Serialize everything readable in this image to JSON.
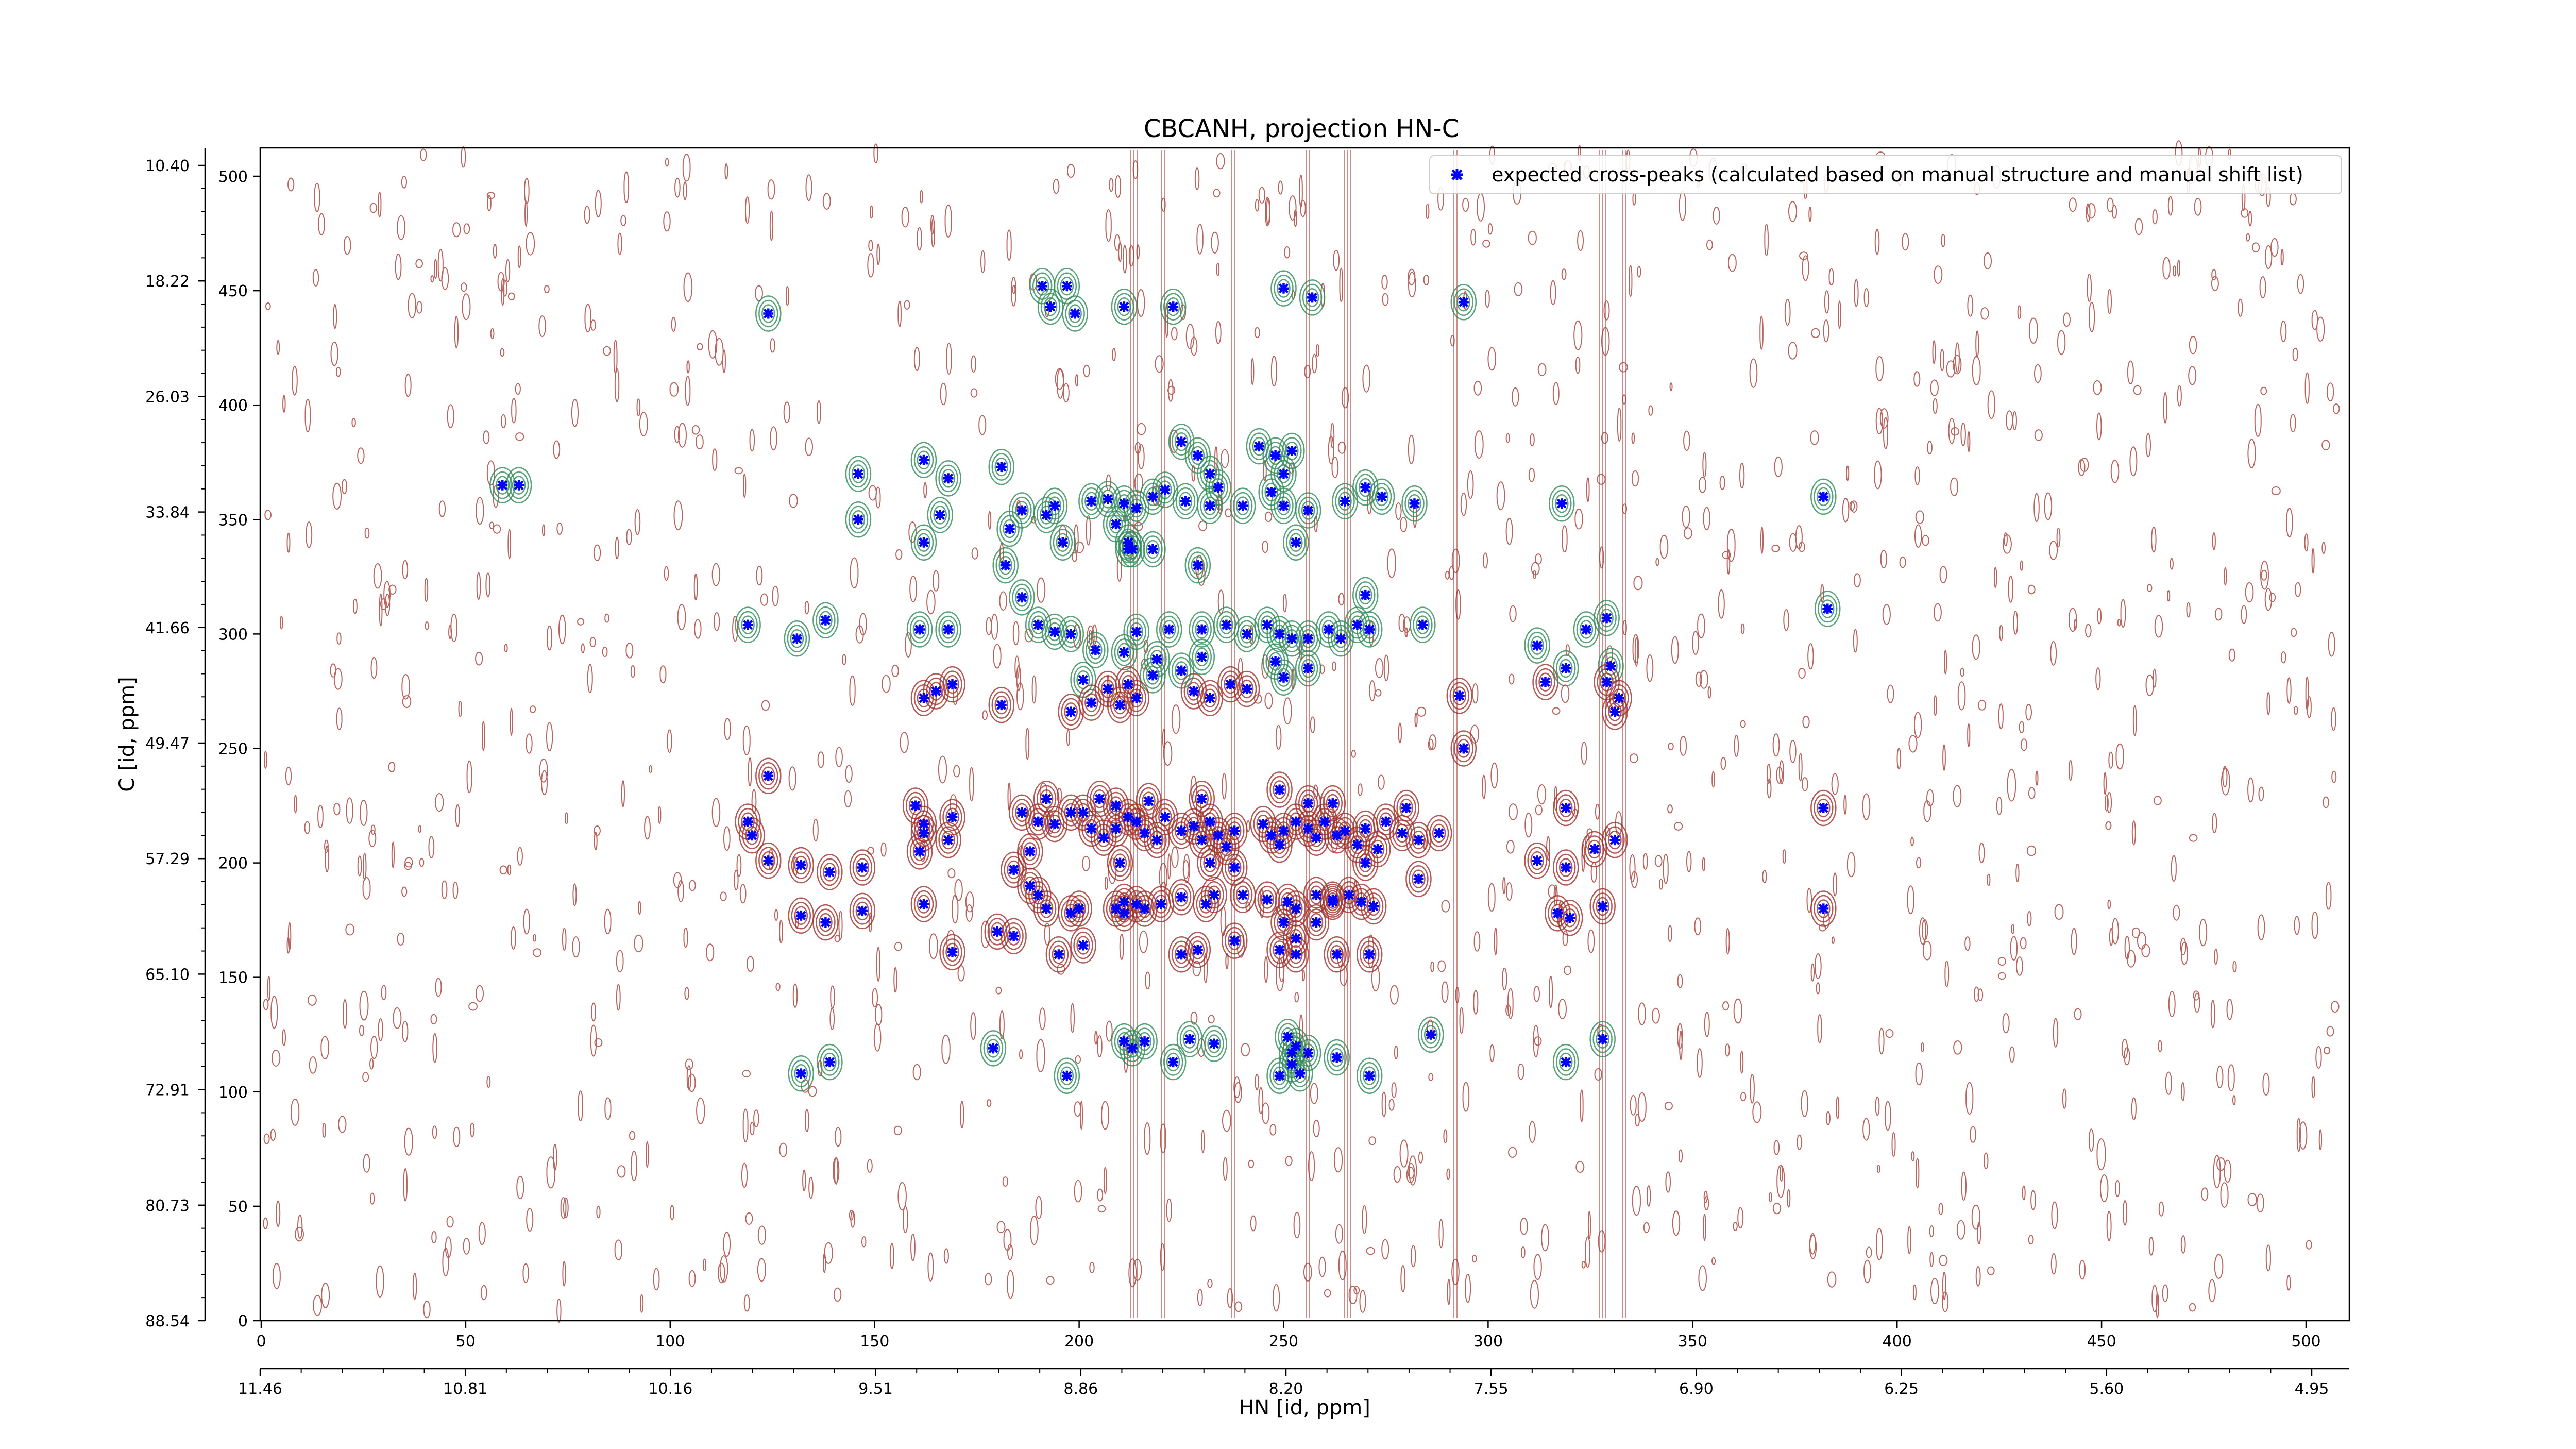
{
  "chart_data": {
    "type": "scatter",
    "title": "CBCANH, projection HN-C",
    "xlabel": "HN [id, ppm]",
    "ylabel": "C [id, ppm]",
    "xlim": [
      0,
      511
    ],
    "ylim": [
      0,
      511
    ],
    "x_ticks_index": [
      "0",
      "50",
      "100",
      "150",
      "200",
      "250",
      "300",
      "350",
      "400",
      "450",
      "500"
    ],
    "y_ticks_index": [
      "0",
      "50",
      "100",
      "150",
      "200",
      "250",
      "300",
      "350",
      "400",
      "450",
      "500"
    ],
    "x_ticks_ppm": [
      "11.46",
      "10.81",
      "10.16",
      "9.51",
      "8.86",
      "8.20",
      "7.55",
      "6.90",
      "6.25",
      "5.60",
      "4.95"
    ],
    "y_ticks_ppm": [
      "88.54",
      "80.73",
      "72.91",
      "65.10",
      "57.29",
      "49.47",
      "41.66",
      "33.84",
      "26.03",
      "18.22",
      "10.40"
    ],
    "legend": {
      "label": "expected cross-peaks (calculated based on manual structure and manual shift list)",
      "placement": "top-right"
    },
    "colors": {
      "positive_contour": "#a0302a",
      "negative_contour": "#2e8b57",
      "marker": "#0000ff",
      "axes": "#000000"
    },
    "grid": false,
    "series": [
      {
        "name": "expected cross-peaks (calculated based on manual structure and manual shift list)",
        "points": [
          [
            124,
            440
          ],
          [
            191,
            452
          ],
          [
            197,
            452
          ],
          [
            193,
            443
          ],
          [
            199,
            440
          ],
          [
            211,
            443
          ],
          [
            223,
            443
          ],
          [
            250,
            451
          ],
          [
            257,
            447
          ],
          [
            294,
            445
          ],
          [
            59,
            365
          ],
          [
            63,
            365
          ],
          [
            146,
            370
          ],
          [
            146,
            350
          ],
          [
            162,
            376
          ],
          [
            168,
            368
          ],
          [
            181,
            373
          ],
          [
            166,
            352
          ],
          [
            162,
            340
          ],
          [
            186,
            354
          ],
          [
            183,
            346
          ],
          [
            182,
            330
          ],
          [
            192,
            352
          ],
          [
            194,
            356
          ],
          [
            196,
            340
          ],
          [
            203,
            358
          ],
          [
            207,
            359
          ],
          [
            211,
            357
          ],
          [
            214,
            355
          ],
          [
            218,
            360
          ],
          [
            209,
            348
          ],
          [
            212,
            340
          ],
          [
            212,
            337
          ],
          [
            221,
            363
          ],
          [
            225,
            384
          ],
          [
            229,
            378
          ],
          [
            232,
            370
          ],
          [
            234,
            364
          ],
          [
            226,
            358
          ],
          [
            232,
            356
          ],
          [
            240,
            356
          ],
          [
            244,
            382
          ],
          [
            248,
            378
          ],
          [
            252,
            380
          ],
          [
            250,
            370
          ],
          [
            247,
            362
          ],
          [
            250,
            356
          ],
          [
            256,
            354
          ],
          [
            265,
            358
          ],
          [
            270,
            364
          ],
          [
            274,
            360
          ],
          [
            282,
            357
          ],
          [
            253,
            340
          ],
          [
            213,
            337
          ],
          [
            218,
            337
          ],
          [
            229,
            330
          ],
          [
            318,
            357
          ],
          [
            382,
            360
          ],
          [
            119,
            304
          ],
          [
            131,
            298
          ],
          [
            138,
            306
          ],
          [
            161,
            302
          ],
          [
            168,
            302
          ],
          [
            186,
            316
          ],
          [
            190,
            304
          ],
          [
            194,
            301
          ],
          [
            198,
            300
          ],
          [
            204,
            293
          ],
          [
            214,
            301
          ],
          [
            222,
            302
          ],
          [
            230,
            302
          ],
          [
            236,
            304
          ],
          [
            241,
            300
          ],
          [
            246,
            304
          ],
          [
            249,
            300
          ],
          [
            252,
            298
          ],
          [
            256,
            298
          ],
          [
            261,
            302
          ],
          [
            264,
            298
          ],
          [
            268,
            304
          ],
          [
            271,
            302
          ],
          [
            270,
            317
          ],
          [
            284,
            304
          ],
          [
            211,
            292
          ],
          [
            219,
            289
          ],
          [
            230,
            290
          ],
          [
            248,
            288
          ],
          [
            250,
            281
          ],
          [
            256,
            285
          ],
          [
            228,
            275
          ],
          [
            232,
            272
          ],
          [
            237,
            278
          ],
          [
            241,
            276
          ],
          [
            201,
            280
          ],
          [
            207,
            276
          ],
          [
            212,
            278
          ],
          [
            218,
            282
          ],
          [
            225,
            284
          ],
          [
            198,
            266
          ],
          [
            203,
            270
          ],
          [
            210,
            269
          ],
          [
            214,
            272
          ],
          [
            293,
            273
          ],
          [
            294,
            250
          ],
          [
            312,
            295
          ],
          [
            314,
            279
          ],
          [
            319,
            285
          ],
          [
            329,
            307
          ],
          [
            324,
            302
          ],
          [
            330,
            286
          ],
          [
            329,
            279
          ],
          [
            332,
            272
          ],
          [
            331,
            266
          ],
          [
            383,
            311
          ],
          [
            162,
            272
          ],
          [
            165,
            275
          ],
          [
            169,
            278
          ],
          [
            181,
            269
          ],
          [
            124,
            238
          ],
          [
            119,
            218
          ],
          [
            120,
            212
          ],
          [
            124,
            201
          ],
          [
            132,
            199
          ],
          [
            139,
            196
          ],
          [
            147,
            198
          ],
          [
            160,
            225
          ],
          [
            162,
            213
          ],
          [
            161,
            205
          ],
          [
            162,
            217
          ],
          [
            169,
            220
          ],
          [
            168,
            210
          ],
          [
            186,
            222
          ],
          [
            192,
            228
          ],
          [
            190,
            218
          ],
          [
            188,
            205
          ],
          [
            184,
            197
          ],
          [
            194,
            217
          ],
          [
            198,
            222
          ],
          [
            201,
            222
          ],
          [
            203,
            215
          ],
          [
            206,
            211
          ],
          [
            209,
            225
          ],
          [
            209,
            215
          ],
          [
            212,
            220
          ],
          [
            210,
            200
          ],
          [
            214,
            218
          ],
          [
            216,
            213
          ],
          [
            219,
            210
          ],
          [
            221,
            220
          ],
          [
            225,
            214
          ],
          [
            228,
            216
          ],
          [
            230,
            210
          ],
          [
            232,
            218
          ],
          [
            234,
            212
          ],
          [
            236,
            207
          ],
          [
            238,
            214
          ],
          [
            232,
            200
          ],
          [
            238,
            198
          ],
          [
            245,
            217
          ],
          [
            247,
            212
          ],
          [
            249,
            208
          ],
          [
            250,
            214
          ],
          [
            253,
            218
          ],
          [
            256,
            215
          ],
          [
            258,
            211
          ],
          [
            260,
            218
          ],
          [
            263,
            212
          ],
          [
            265,
            214
          ],
          [
            268,
            208
          ],
          [
            270,
            200
          ],
          [
            270,
            215
          ],
          [
            273,
            206
          ],
          [
            275,
            218
          ],
          [
            279,
            213
          ],
          [
            283,
            210
          ],
          [
            288,
            213
          ],
          [
            205,
            228
          ],
          [
            217,
            227
          ],
          [
            230,
            228
          ],
          [
            249,
            232
          ],
          [
            256,
            226
          ],
          [
            262,
            226
          ],
          [
            280,
            224
          ],
          [
            283,
            193
          ],
          [
            188,
            190
          ],
          [
            190,
            186
          ],
          [
            192,
            180
          ],
          [
            198,
            178
          ],
          [
            200,
            180
          ],
          [
            211,
            183
          ],
          [
            216,
            180
          ],
          [
            220,
            182
          ],
          [
            225,
            185
          ],
          [
            231,
            182
          ],
          [
            233,
            186
          ],
          [
            240,
            186
          ],
          [
            246,
            184
          ],
          [
            251,
            183
          ],
          [
            253,
            180
          ],
          [
            258,
            186
          ],
          [
            262,
            184
          ],
          [
            266,
            186
          ],
          [
            269,
            183
          ],
          [
            250,
            174
          ],
          [
            253,
            167
          ],
          [
            249,
            162
          ],
          [
            258,
            174
          ],
          [
            262,
            183
          ],
          [
            272,
            181
          ],
          [
            201,
            164
          ],
          [
            180,
            170
          ],
          [
            184,
            168
          ],
          [
            195,
            160
          ],
          [
            209,
            180
          ],
          [
            211,
            178
          ],
          [
            214,
            182
          ],
          [
            225,
            160
          ],
          [
            229,
            162
          ],
          [
            238,
            166
          ],
          [
            253,
            160
          ],
          [
            263,
            160
          ],
          [
            271,
            160
          ],
          [
            132,
            177
          ],
          [
            138,
            174
          ],
          [
            147,
            179
          ],
          [
            162,
            182
          ],
          [
            169,
            161
          ],
          [
            317,
            178
          ],
          [
            320,
            176
          ],
          [
            328,
            181
          ],
          [
            319,
            198
          ],
          [
            312,
            201
          ],
          [
            319,
            224
          ],
          [
            326,
            206
          ],
          [
            331,
            210
          ],
          [
            382,
            224
          ],
          [
            382,
            180
          ],
          [
            179,
            119
          ],
          [
            197,
            107
          ],
          [
            211,
            122
          ],
          [
            213,
            119
          ],
          [
            216,
            122
          ],
          [
            223,
            113
          ],
          [
            227,
            123
          ],
          [
            233,
            121
          ],
          [
            251,
            124
          ],
          [
            253,
            120
          ],
          [
            252,
            117
          ],
          [
            256,
            117
          ],
          [
            263,
            115
          ],
          [
            254,
            108
          ],
          [
            252,
            112
          ],
          [
            249,
            107
          ],
          [
            271,
            107
          ],
          [
            286,
            125
          ],
          [
            132,
            108
          ],
          [
            139,
            113
          ],
          [
            319,
            113
          ],
          [
            328,
            123
          ]
        ]
      }
    ]
  }
}
